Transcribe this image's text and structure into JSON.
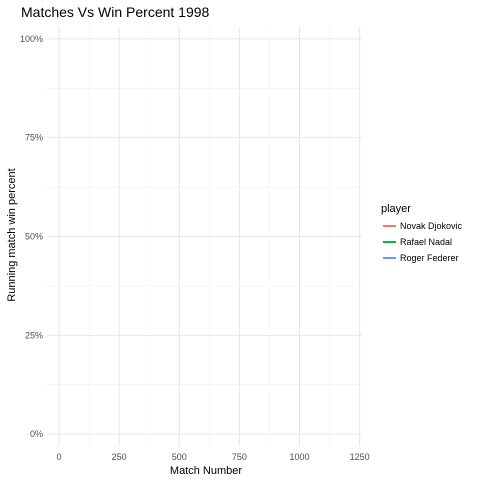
{
  "chart_data": {
    "type": "line",
    "title": "Matches Vs Win Percent 1998",
    "xlabel": "Match Number",
    "ylabel": "Running match win percent",
    "xlim": [
      -50,
      1260
    ],
    "ylim": [
      -0.03,
      1.03
    ],
    "x_ticks": [
      0,
      250,
      500,
      750,
      1000,
      1250
    ],
    "x_tick_labels": [
      "0",
      "250",
      "500",
      "750",
      "1000",
      "1250"
    ],
    "y_ticks": [
      0,
      0.25,
      0.5,
      0.75,
      1.0
    ],
    "y_tick_labels": [
      "0%",
      "25%",
      "50%",
      "75%",
      "100%"
    ],
    "grid": true,
    "legend": {
      "title": "player",
      "placement": "right"
    },
    "series": [
      {
        "name": "Novak Djokovic",
        "color": "#F8766D",
        "x": [],
        "y": []
      },
      {
        "name": "Rafael Nadal",
        "color": "#00BA38",
        "x": [],
        "y": []
      },
      {
        "name": "Roger Federer",
        "color": "#619CFF",
        "x": [],
        "y": []
      }
    ]
  }
}
